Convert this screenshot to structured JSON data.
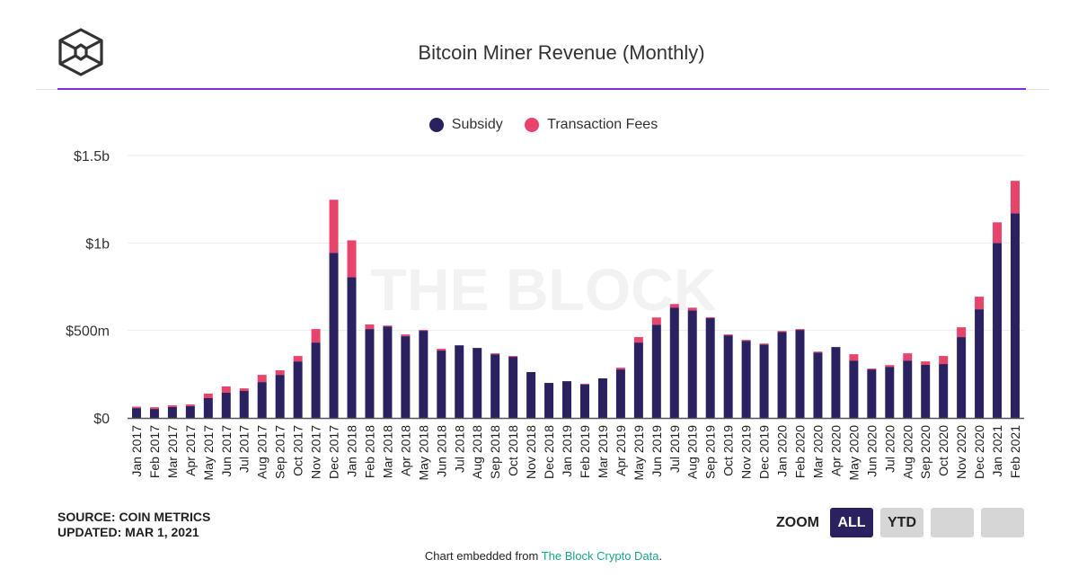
{
  "header": {
    "title": "Bitcoin Miner Revenue (Monthly)",
    "logo": "the-block-cube-logo"
  },
  "footer": {
    "source": "SOURCE: COIN METRICS",
    "updated": "UPDATED: MAR 1, 2021",
    "embed_prefix": "Chart embedded from ",
    "embed_link": "The Block Crypto Data",
    "embed_suffix": "."
  },
  "zoom": {
    "label": "ZOOM",
    "buttons": [
      "ALL",
      "YTD",
      "",
      ""
    ],
    "active": "ALL"
  },
  "watermark": "THE BLOCK",
  "chart_data": {
    "type": "bar",
    "stacked": true,
    "title": "Bitcoin Miner Revenue (Monthly)",
    "xlabel": "",
    "ylabel": "",
    "ylim": [
      0,
      1500000000
    ],
    "yticks": [
      {
        "value": 0,
        "label": "$0"
      },
      {
        "value": 500000000,
        "label": "$500m"
      },
      {
        "value": 1000000000,
        "label": "$1b"
      },
      {
        "value": 1500000000,
        "label": "$1.5b"
      }
    ],
    "grid": true,
    "legend": "top",
    "categories": [
      "Jan 2017",
      "Feb 2017",
      "Mar 2017",
      "Apr 2017",
      "May 2017",
      "Jun 2017",
      "Jul 2017",
      "Aug 2017",
      "Sep 2017",
      "Oct 2017",
      "Nov 2017",
      "Dec 2017",
      "Jan 2018",
      "Feb 2018",
      "Mar 2018",
      "Apr 2018",
      "May 2018",
      "Jun 2018",
      "Jul 2018",
      "Aug 2018",
      "Sep 2018",
      "Oct 2018",
      "Nov 2018",
      "Dec 2018",
      "Jan 2019",
      "Feb 2019",
      "Mar 2019",
      "Apr 2019",
      "May 2019",
      "Jun 2019",
      "Jul 2019",
      "Aug 2019",
      "Sep 2019",
      "Oct 2019",
      "Nov 2019",
      "Dec 2019",
      "Jan 2020",
      "Feb 2020",
      "Mar 2020",
      "Apr 2020",
      "May 2020",
      "Jun 2020",
      "Jul 2020",
      "Aug 2020",
      "Sep 2020",
      "Oct 2020",
      "Nov 2020",
      "Dec 2020",
      "Jan 2021",
      "Feb 2021"
    ],
    "series": [
      {
        "name": "Subsidy",
        "color": "#2a2160",
        "values_millions": [
          56,
          51,
          62,
          67,
          113,
          144,
          154,
          205,
          246,
          323,
          431,
          944,
          805,
          508,
          523,
          467,
          498,
          385,
          415,
          400,
          364,
          349,
          262,
          200,
          210,
          190,
          226,
          277,
          431,
          533,
          631,
          615,
          570,
          472,
          441,
          420,
          492,
          503,
          374,
          405,
          328,
          277,
          292,
          328,
          303,
          308,
          462,
          621,
          1000,
          1170
        ]
      },
      {
        "name": "Transaction Fees",
        "color": "#e8436a",
        "values_millions": [
          8,
          10,
          10,
          10,
          26,
          36,
          15,
          41,
          26,
          31,
          77,
          303,
          210,
          26,
          5,
          10,
          5,
          10,
          0,
          0,
          5,
          5,
          0,
          0,
          0,
          5,
          0,
          10,
          31,
          41,
          20,
          15,
          5,
          5,
          5,
          5,
          5,
          5,
          5,
          0,
          36,
          5,
          10,
          41,
          20,
          46,
          56,
          72,
          118,
          185
        ]
      }
    ]
  }
}
